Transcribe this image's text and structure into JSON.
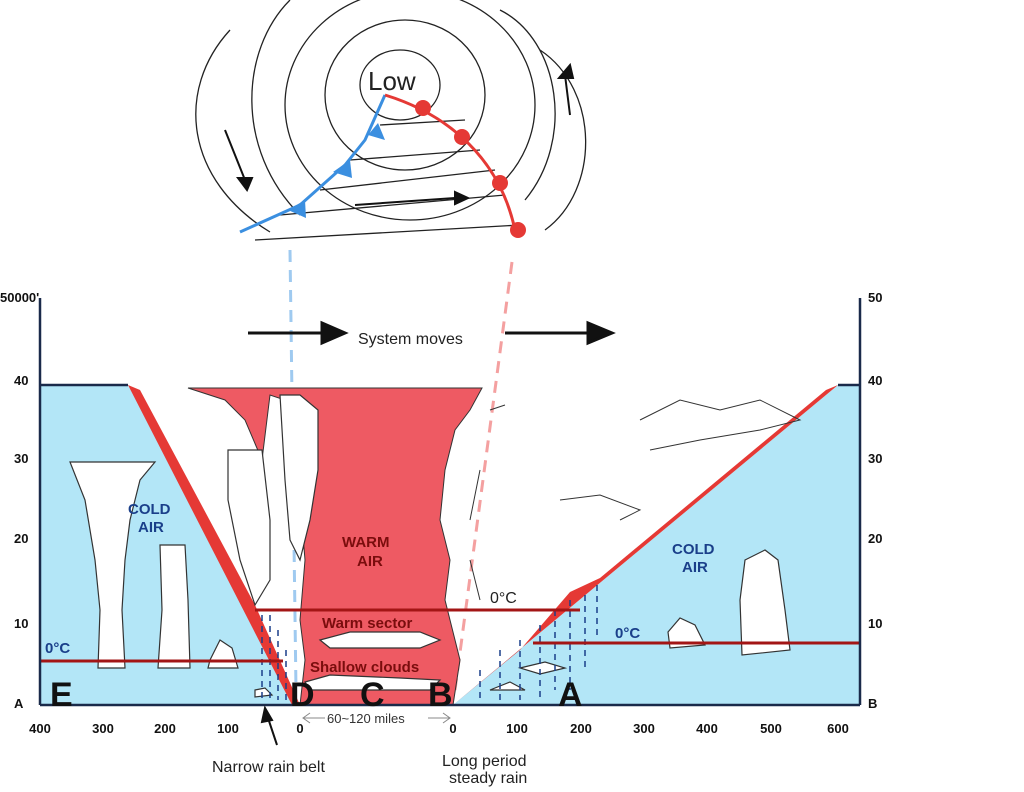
{
  "low_label": "Low",
  "system_moves": "System moves",
  "left_axis": {
    "top": "50000'",
    "ticks": [
      "40",
      "30",
      "20",
      "10",
      "A"
    ]
  },
  "right_axis": {
    "ticks": [
      "50",
      "40",
      "30",
      "20",
      "10",
      "B"
    ]
  },
  "x_ticks_left": [
    "400",
    "300",
    "200",
    "100",
    "0"
  ],
  "x_ticks_right": [
    "0",
    "100",
    "200",
    "300",
    "400",
    "500",
    "600"
  ],
  "cold_air_left": [
    "COLD",
    "AIR"
  ],
  "cold_air_right": [
    "COLD",
    "AIR"
  ],
  "warm_air": [
    "WARM",
    "AIR"
  ],
  "warm_sector": "Warm sector",
  "shallow_clouds": "Shallow clouds",
  "zero_c_left": "0°C",
  "zero_c_mid": "0°C",
  "zero_c_right": "0°C",
  "distance": "60~120 miles",
  "narrow_rain_belt": "Narrow rain belt",
  "steady_rain": [
    "Long period",
    "steady rain"
  ],
  "letters": [
    "E",
    "D",
    "C",
    "B",
    "A"
  ],
  "colors": {
    "cold_air": "#b3e6f7",
    "warm_air": "#ee5a63",
    "front_red": "#e53935",
    "front_blue": "#3b8fe0",
    "freezing_line": "#a31515"
  }
}
